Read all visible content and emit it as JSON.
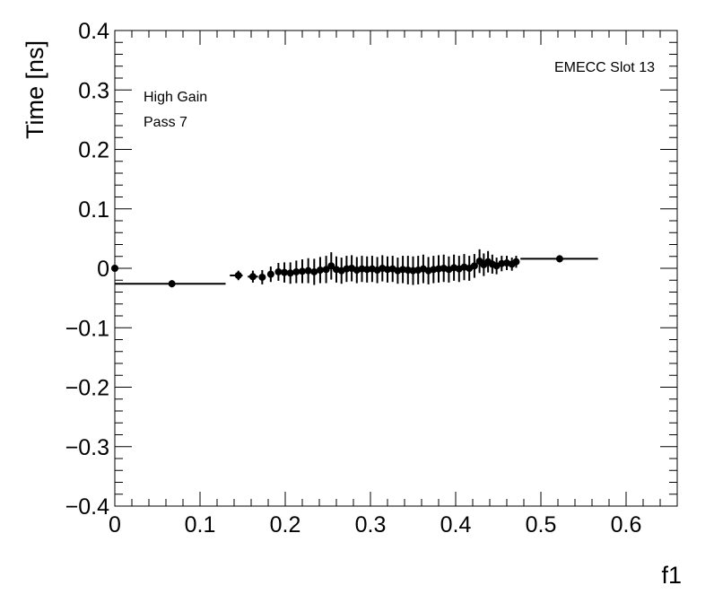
{
  "chart_data": {
    "type": "scatter",
    "title": "",
    "xlabel": "f1",
    "ylabel": "Time [ns]",
    "xlim": [
      0,
      0.66
    ],
    "ylim": [
      -0.4,
      0.4
    ],
    "x_ticks": [
      "0",
      "0.1",
      "0.2",
      "0.3",
      "0.4",
      "0.5",
      "0.6"
    ],
    "y_ticks": [
      "−0.4",
      "−0.3",
      "−0.2",
      "−0.1",
      "0",
      "0.1",
      "0.2",
      "0.3",
      "0.4"
    ],
    "x_tick_values": [
      0,
      0.1,
      0.2,
      0.3,
      0.4,
      0.5,
      0.6
    ],
    "y_tick_values": [
      -0.4,
      -0.3,
      -0.2,
      -0.1,
      0,
      0.1,
      0.2,
      0.3,
      0.4
    ],
    "annotations": {
      "label_top_right": "EMECC Slot 13",
      "label_gain": "High Gain",
      "label_pass": "Pass 7"
    },
    "grid": false,
    "series": [
      {
        "points": [
          {
            "x": 0.0,
            "y": 0.0,
            "xerr_lo": 0.0,
            "xerr_hi": 0.0,
            "yerr": 0.0
          },
          {
            "x": 0.067,
            "y": -0.026,
            "xerr_lo": 0.067,
            "xerr_hi": 0.063,
            "yerr": 0.006
          },
          {
            "x": 0.145,
            "y": -0.012,
            "xerr_lo": 0.01,
            "xerr_hi": 0.005,
            "yerr": 0.008
          },
          {
            "x": 0.162,
            "y": -0.014,
            "xerr_lo": 0.006,
            "xerr_hi": 0.006,
            "yerr": 0.01
          },
          {
            "x": 0.173,
            "y": -0.015,
            "xerr_lo": 0.004,
            "xerr_hi": 0.004,
            "yerr": 0.012
          },
          {
            "x": 0.183,
            "y": -0.01,
            "xerr_lo": 0.004,
            "xerr_hi": 0.004,
            "yerr": 0.013
          },
          {
            "x": 0.192,
            "y": -0.006,
            "xerr_lo": 0.003,
            "xerr_hi": 0.003,
            "yerr": 0.015
          },
          {
            "x": 0.199,
            "y": -0.007,
            "xerr_lo": 0.003,
            "xerr_hi": 0.003,
            "yerr": 0.017
          },
          {
            "x": 0.206,
            "y": -0.008,
            "xerr_lo": 0.003,
            "xerr_hi": 0.003,
            "yerr": 0.018
          },
          {
            "x": 0.213,
            "y": -0.006,
            "xerr_lo": 0.003,
            "xerr_hi": 0.003,
            "yerr": 0.019
          },
          {
            "x": 0.22,
            "y": -0.005,
            "xerr_lo": 0.003,
            "xerr_hi": 0.003,
            "yerr": 0.02
          },
          {
            "x": 0.227,
            "y": -0.004,
            "xerr_lo": 0.003,
            "xerr_hi": 0.003,
            "yerr": 0.021
          },
          {
            "x": 0.234,
            "y": -0.006,
            "xerr_lo": 0.003,
            "xerr_hi": 0.003,
            "yerr": 0.022
          },
          {
            "x": 0.241,
            "y": -0.003,
            "xerr_lo": 0.003,
            "xerr_hi": 0.003,
            "yerr": 0.022
          },
          {
            "x": 0.248,
            "y": -0.002,
            "xerr_lo": 0.003,
            "xerr_hi": 0.003,
            "yerr": 0.023
          },
          {
            "x": 0.254,
            "y": 0.004,
            "xerr_lo": 0.003,
            "xerr_hi": 0.003,
            "yerr": 0.023
          },
          {
            "x": 0.26,
            "y": -0.002,
            "xerr_lo": 0.003,
            "xerr_hi": 0.003,
            "yerr": 0.022
          },
          {
            "x": 0.266,
            "y": -0.004,
            "xerr_lo": 0.003,
            "xerr_hi": 0.003,
            "yerr": 0.022
          },
          {
            "x": 0.272,
            "y": -0.001,
            "xerr_lo": 0.003,
            "xerr_hi": 0.003,
            "yerr": 0.022
          },
          {
            "x": 0.278,
            "y": 0.0,
            "xerr_lo": 0.003,
            "xerr_hi": 0.003,
            "yerr": 0.022
          },
          {
            "x": 0.284,
            "y": -0.003,
            "xerr_lo": 0.003,
            "xerr_hi": 0.003,
            "yerr": 0.022
          },
          {
            "x": 0.29,
            "y": -0.001,
            "xerr_lo": 0.003,
            "xerr_hi": 0.003,
            "yerr": 0.022
          },
          {
            "x": 0.296,
            "y": -0.002,
            "xerr_lo": 0.003,
            "xerr_hi": 0.003,
            "yerr": 0.022
          },
          {
            "x": 0.302,
            "y": -0.001,
            "xerr_lo": 0.003,
            "xerr_hi": 0.003,
            "yerr": 0.022
          },
          {
            "x": 0.308,
            "y": -0.003,
            "xerr_lo": 0.003,
            "xerr_hi": 0.003,
            "yerr": 0.022
          },
          {
            "x": 0.314,
            "y": 0.0,
            "xerr_lo": 0.003,
            "xerr_hi": 0.003,
            "yerr": 0.022
          },
          {
            "x": 0.32,
            "y": -0.002,
            "xerr_lo": 0.003,
            "xerr_hi": 0.003,
            "yerr": 0.022
          },
          {
            "x": 0.326,
            "y": -0.001,
            "xerr_lo": 0.003,
            "xerr_hi": 0.003,
            "yerr": 0.022
          },
          {
            "x": 0.332,
            "y": -0.004,
            "xerr_lo": 0.003,
            "xerr_hi": 0.003,
            "yerr": 0.022
          },
          {
            "x": 0.338,
            "y": -0.002,
            "xerr_lo": 0.003,
            "xerr_hi": 0.003,
            "yerr": 0.023
          },
          {
            "x": 0.344,
            "y": -0.003,
            "xerr_lo": 0.003,
            "xerr_hi": 0.003,
            "yerr": 0.024
          },
          {
            "x": 0.35,
            "y": -0.004,
            "xerr_lo": 0.003,
            "xerr_hi": 0.003,
            "yerr": 0.024
          },
          {
            "x": 0.356,
            "y": -0.003,
            "xerr_lo": 0.003,
            "xerr_hi": 0.003,
            "yerr": 0.024
          },
          {
            "x": 0.362,
            "y": -0.001,
            "xerr_lo": 0.003,
            "xerr_hi": 0.003,
            "yerr": 0.024
          },
          {
            "x": 0.368,
            "y": -0.004,
            "xerr_lo": 0.003,
            "xerr_hi": 0.003,
            "yerr": 0.023
          },
          {
            "x": 0.374,
            "y": -0.002,
            "xerr_lo": 0.003,
            "xerr_hi": 0.003,
            "yerr": 0.023
          },
          {
            "x": 0.38,
            "y": -0.001,
            "xerr_lo": 0.003,
            "xerr_hi": 0.003,
            "yerr": 0.023
          },
          {
            "x": 0.386,
            "y": 0.0,
            "xerr_lo": 0.003,
            "xerr_hi": 0.003,
            "yerr": 0.023
          },
          {
            "x": 0.392,
            "y": -0.002,
            "xerr_lo": 0.003,
            "xerr_hi": 0.003,
            "yerr": 0.022
          },
          {
            "x": 0.398,
            "y": 0.001,
            "xerr_lo": 0.003,
            "xerr_hi": 0.003,
            "yerr": 0.022
          },
          {
            "x": 0.404,
            "y": -0.001,
            "xerr_lo": 0.003,
            "xerr_hi": 0.003,
            "yerr": 0.022
          },
          {
            "x": 0.41,
            "y": 0.002,
            "xerr_lo": 0.003,
            "xerr_hi": 0.003,
            "yerr": 0.022
          },
          {
            "x": 0.416,
            "y": 0.0,
            "xerr_lo": 0.003,
            "xerr_hi": 0.003,
            "yerr": 0.021
          },
          {
            "x": 0.422,
            "y": 0.004,
            "xerr_lo": 0.003,
            "xerr_hi": 0.003,
            "yerr": 0.02
          },
          {
            "x": 0.428,
            "y": 0.012,
            "xerr_lo": 0.003,
            "xerr_hi": 0.003,
            "yerr": 0.02
          },
          {
            "x": 0.433,
            "y": 0.006,
            "xerr_lo": 0.003,
            "xerr_hi": 0.003,
            "yerr": 0.019
          },
          {
            "x": 0.438,
            "y": 0.011,
            "xerr_lo": 0.003,
            "xerr_hi": 0.003,
            "yerr": 0.018
          },
          {
            "x": 0.443,
            "y": 0.007,
            "xerr_lo": 0.003,
            "xerr_hi": 0.003,
            "yerr": 0.016
          },
          {
            "x": 0.448,
            "y": 0.004,
            "xerr_lo": 0.003,
            "xerr_hi": 0.003,
            "yerr": 0.014
          },
          {
            "x": 0.454,
            "y": 0.008,
            "xerr_lo": 0.003,
            "xerr_hi": 0.003,
            "yerr": 0.013
          },
          {
            "x": 0.46,
            "y": 0.009,
            "xerr_lo": 0.003,
            "xerr_hi": 0.003,
            "yerr": 0.012
          },
          {
            "x": 0.466,
            "y": 0.007,
            "xerr_lo": 0.003,
            "xerr_hi": 0.003,
            "yerr": 0.011
          },
          {
            "x": 0.471,
            "y": 0.011,
            "xerr_lo": 0.003,
            "xerr_hi": 0.003,
            "yerr": 0.01
          },
          {
            "x": 0.522,
            "y": 0.016,
            "xerr_lo": 0.046,
            "xerr_hi": 0.045,
            "yerr": 0.006
          }
        ]
      }
    ]
  }
}
